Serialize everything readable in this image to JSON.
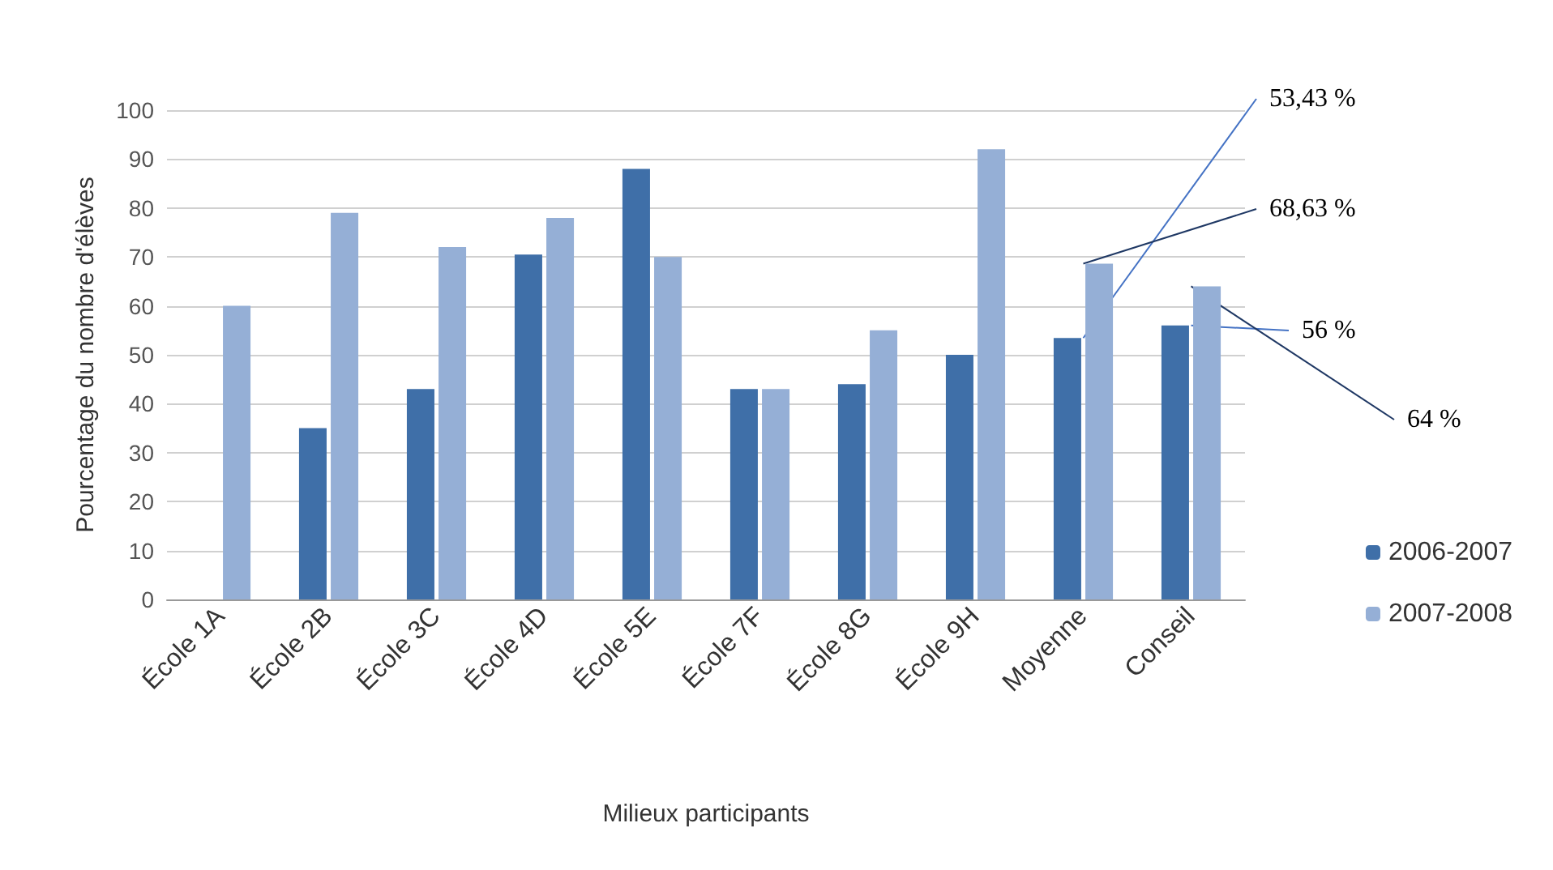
{
  "chart_data": {
    "type": "bar",
    "xlabel": "Milieux participants",
    "ylabel": "Pourcentage du nombre d'élèves",
    "categories": [
      "École 1A",
      "École 2B",
      "École 3C",
      "École 4D",
      "École 5E",
      "École 7F",
      "École 8G",
      "École 9H",
      "Moyenne",
      "Conseil"
    ],
    "series": [
      {
        "name": "2006-2007",
        "color": "#3f6fa8",
        "values": [
          null,
          35,
          43,
          70.5,
          88,
          43,
          44,
          50,
          53.43,
          56
        ]
      },
      {
        "name": "2007-2008",
        "color": "#95afd6",
        "values": [
          60,
          79,
          72,
          78,
          70,
          43,
          55,
          92,
          68.63,
          64
        ]
      }
    ],
    "ylim": [
      0,
      100
    ],
    "yticks": [
      0,
      10,
      20,
      30,
      40,
      50,
      60,
      70,
      80,
      90,
      100
    ],
    "grid": "y",
    "legend": "right",
    "annotations": [
      {
        "text": "53,43 %",
        "x": "Moyenne",
        "y": 53.43
      },
      {
        "text": "68,63 %",
        "x": "Moyenne",
        "y": 68.63
      },
      {
        "text": "56 %",
        "x": "Conseil",
        "y": 56
      },
      {
        "text": "64 %",
        "x": "Conseil",
        "y": 64
      }
    ]
  }
}
